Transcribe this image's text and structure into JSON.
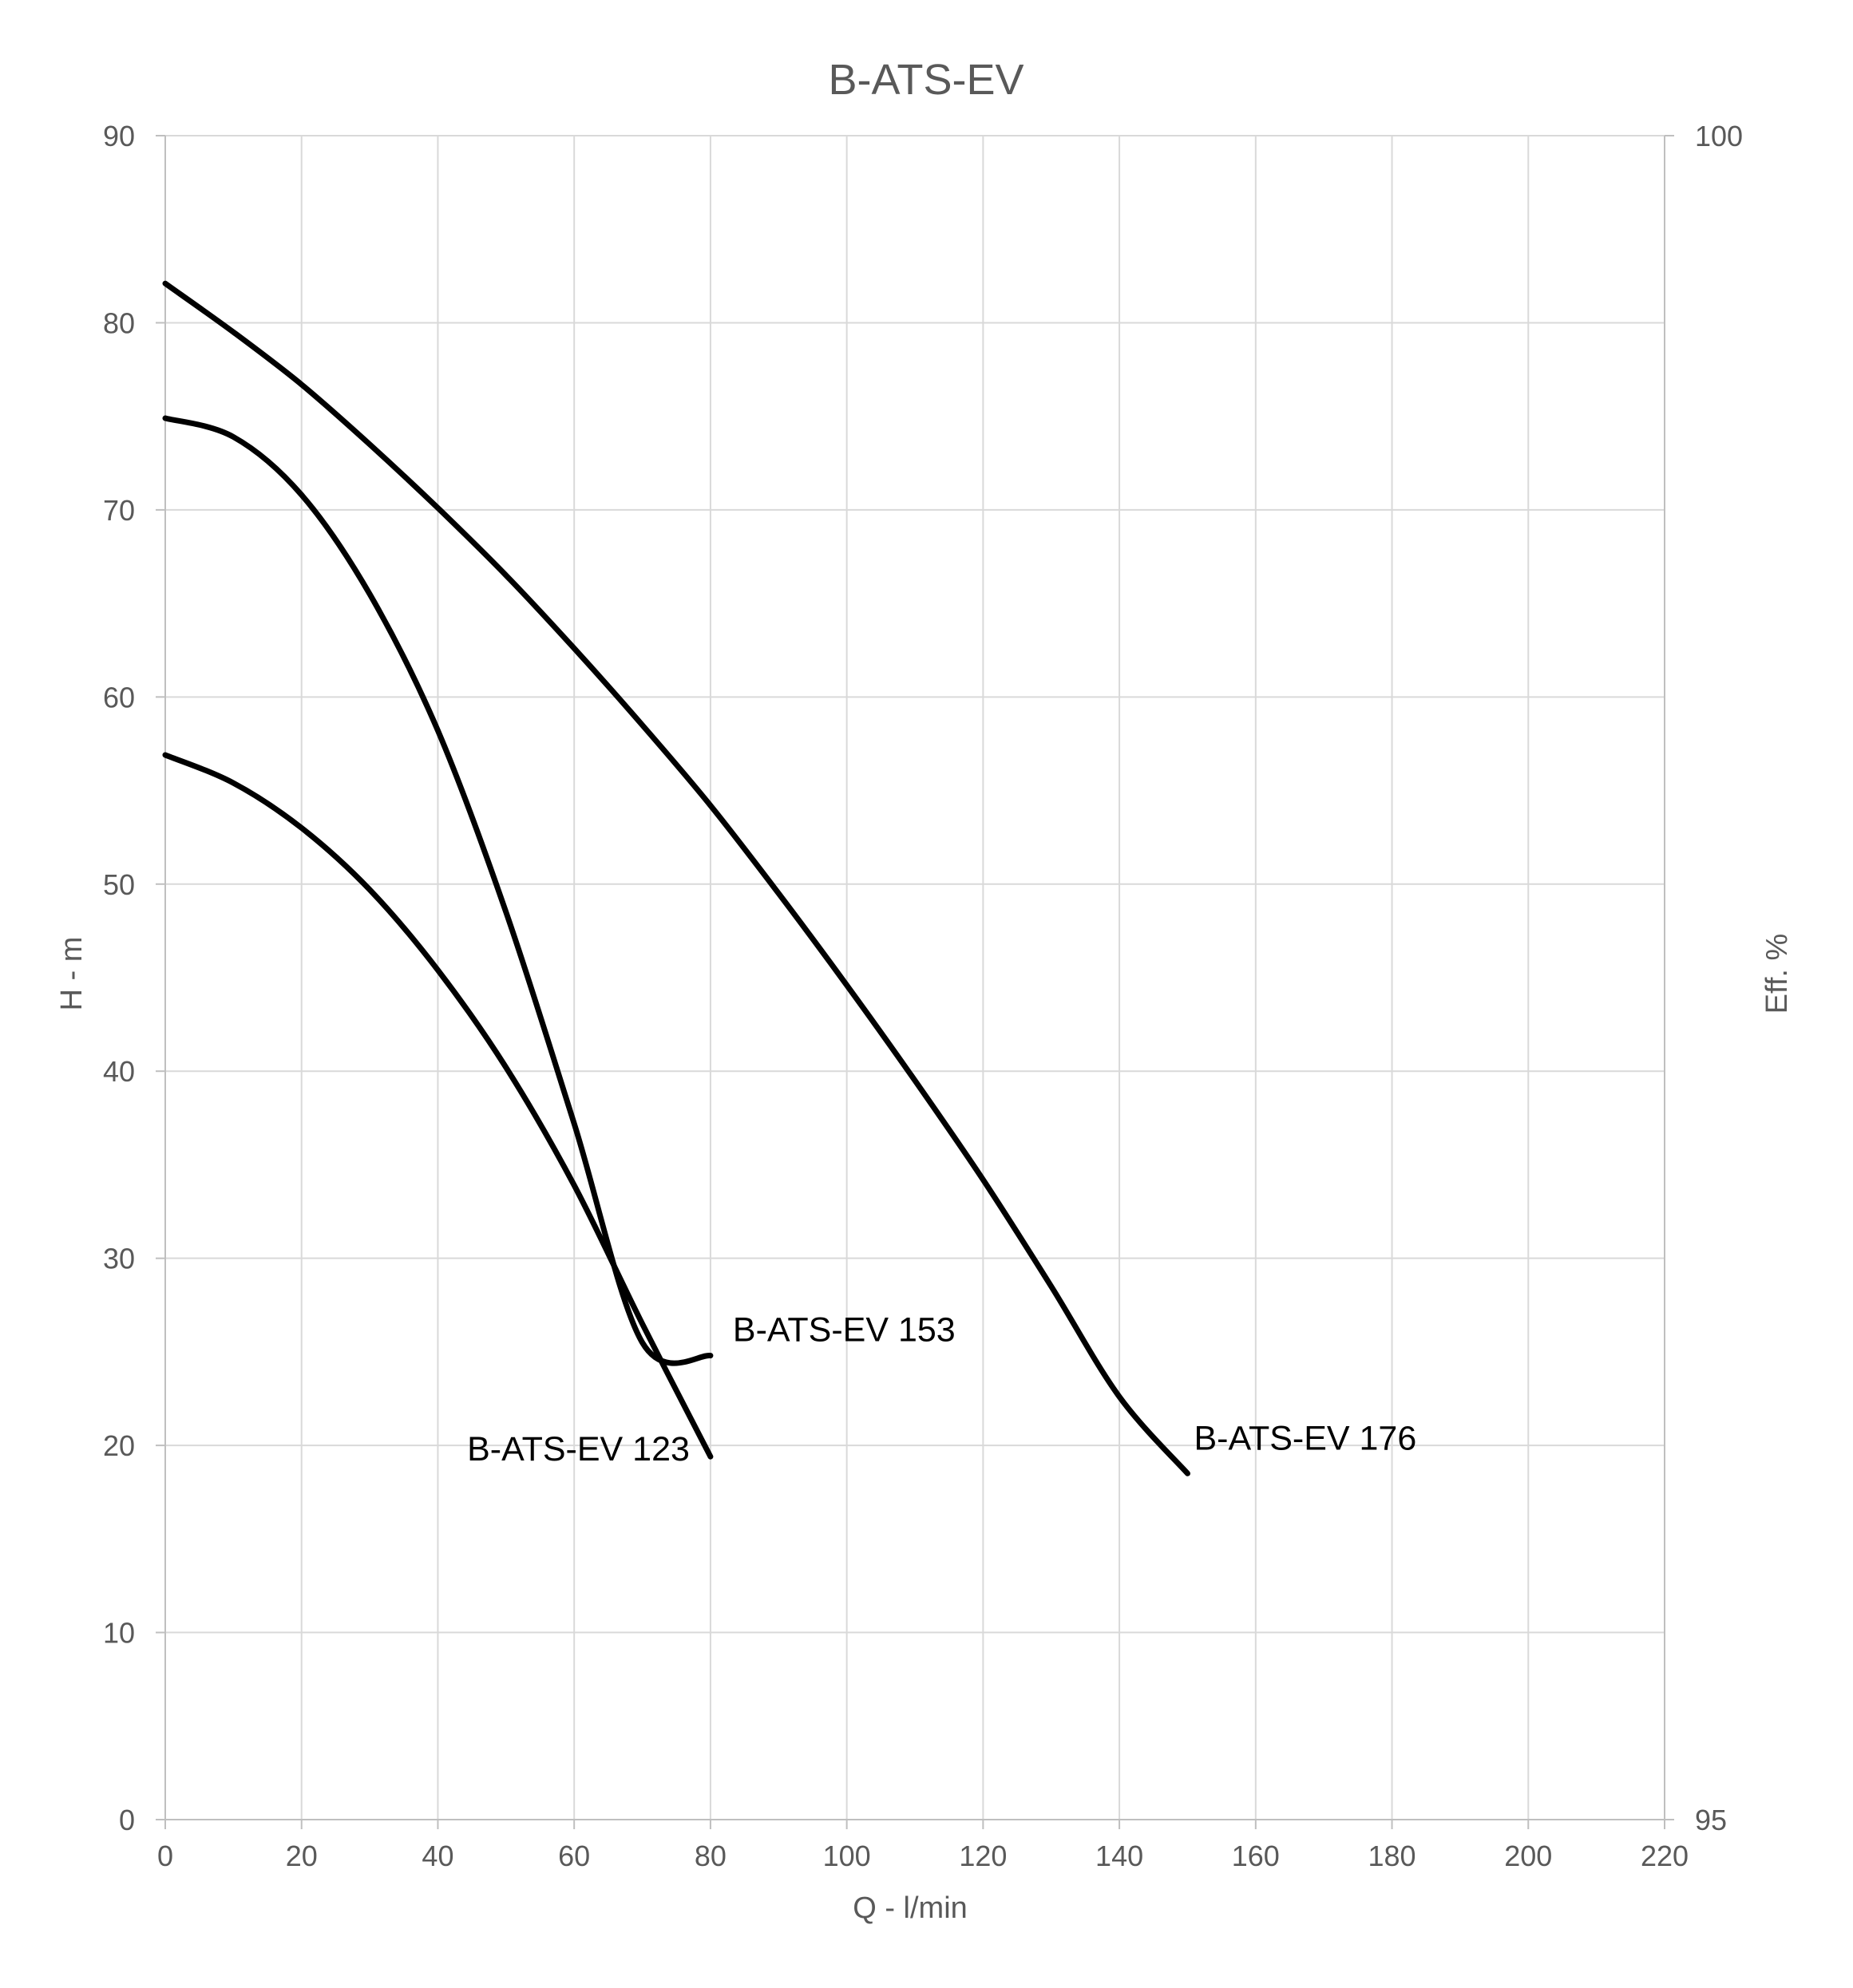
{
  "chart_data": {
    "type": "line",
    "title": "B-ATS-EV",
    "xlabel": "Q - l/min",
    "ylabel": "H - m",
    "y2label": "Eff. %",
    "xlim": [
      0,
      220
    ],
    "ylim": [
      0,
      90
    ],
    "y2lim": [
      95,
      100
    ],
    "x_ticks": [
      "0",
      "20",
      "40",
      "60",
      "80",
      "100",
      "120",
      "140",
      "160",
      "180",
      "200",
      "220"
    ],
    "y_ticks": [
      "0",
      "10",
      "20",
      "30",
      "40",
      "50",
      "60",
      "70",
      "80",
      "90"
    ],
    "y2_ticks": [
      "95",
      "100"
    ],
    "grid": true,
    "line_color": "#000000",
    "grid_color": "#d9d9d9",
    "series": [
      {
        "name": "B-ATS-EV 176",
        "x": [
          0,
          10,
          20,
          30,
          40,
          50,
          60,
          70,
          80,
          90,
          100,
          110,
          120,
          130,
          140,
          150
        ],
        "y": [
          82.1,
          79.5,
          76.7,
          73.5,
          70.1,
          66.5,
          62.6,
          58.5,
          54.2,
          49.5,
          44.6,
          39.5,
          34.2,
          28.5,
          22.6,
          18.5
        ]
      },
      {
        "name": "B-ATS-EV 153",
        "x": [
          0,
          10,
          20,
          30,
          40,
          50,
          60,
          70,
          80
        ],
        "y": [
          74.9,
          73.9,
          70.8,
          65.5,
          58.2,
          48.5,
          37.2,
          25.5,
          24.8
        ]
      },
      {
        "name": "B-ATS-EV 123",
        "x": [
          0,
          10,
          20,
          30,
          40,
          50,
          60,
          70,
          80
        ],
        "y": [
          56.9,
          55.4,
          53.0,
          49.7,
          45.4,
          40.2,
          33.9,
          26.5,
          19.4
        ]
      }
    ]
  }
}
